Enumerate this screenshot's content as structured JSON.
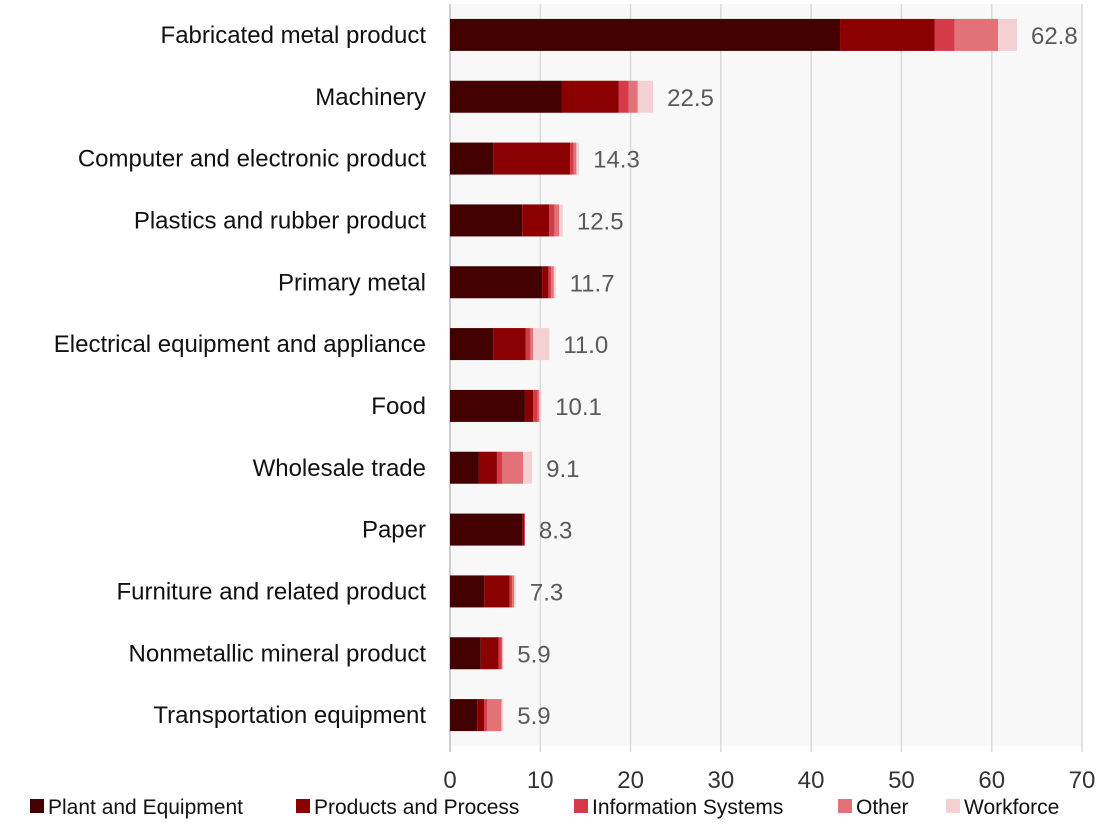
{
  "chart_data": {
    "type": "bar",
    "orientation": "horizontal",
    "stacked": true,
    "categories": [
      "Fabricated metal product",
      "Machinery",
      "Computer and electronic product",
      "Plastics and rubber product",
      "Primary metal",
      "Electrical equipment and appliance",
      "Food",
      "Wholesale trade",
      "Paper",
      "Furniture and related product",
      "Nonmetallic mineral product",
      "Transportation equipment"
    ],
    "series": [
      {
        "name": "Plant and Equipment",
        "color": "#420000",
        "values": [
          43.2,
          12.4,
          4.8,
          8.0,
          10.2,
          4.8,
          8.3,
          3.2,
          8.0,
          3.8,
          3.4,
          3.0
        ]
      },
      {
        "name": "Products and Process",
        "color": "#8b0000",
        "values": [
          10.5,
          6.3,
          8.5,
          3.0,
          0.7,
          3.6,
          0.9,
          2.0,
          0.2,
          2.8,
          2.0,
          0.8
        ]
      },
      {
        "name": "Information Systems",
        "color": "#d43a47",
        "values": [
          2.2,
          1.1,
          0.4,
          0.6,
          0.3,
          0.5,
          0.5,
          0.6,
          0.1,
          0.3,
          0.3,
          0.3
        ]
      },
      {
        "name": "Other",
        "color": "#e07278",
        "values": [
          4.8,
          1.0,
          0.3,
          0.5,
          0.3,
          0.3,
          0.2,
          2.3,
          0.0,
          0.2,
          0.1,
          1.6
        ]
      },
      {
        "name": "Workforce",
        "color": "#f5d0d3",
        "values": [
          2.1,
          1.7,
          0.3,
          0.4,
          0.2,
          1.8,
          0.2,
          1.0,
          0.0,
          0.2,
          0.1,
          0.2
        ]
      }
    ],
    "totals": [
      "62.8",
      "22.5",
      "14.3",
      "12.5",
      "11.7",
      "11.0",
      "10.1",
      "9.1",
      "8.3",
      "7.3",
      "5.9",
      "5.9"
    ],
    "xlim": [
      0,
      70
    ],
    "xticks": [
      0,
      10,
      20,
      30,
      40,
      50,
      60,
      70
    ],
    "grid": true,
    "legend_position": "bottom",
    "title": "",
    "xlabel": "",
    "ylabel": "",
    "colors": {
      "plot_background": "#f8f8f8",
      "gridline": "#d9d9d9",
      "axis": "#bfbfbf"
    }
  }
}
